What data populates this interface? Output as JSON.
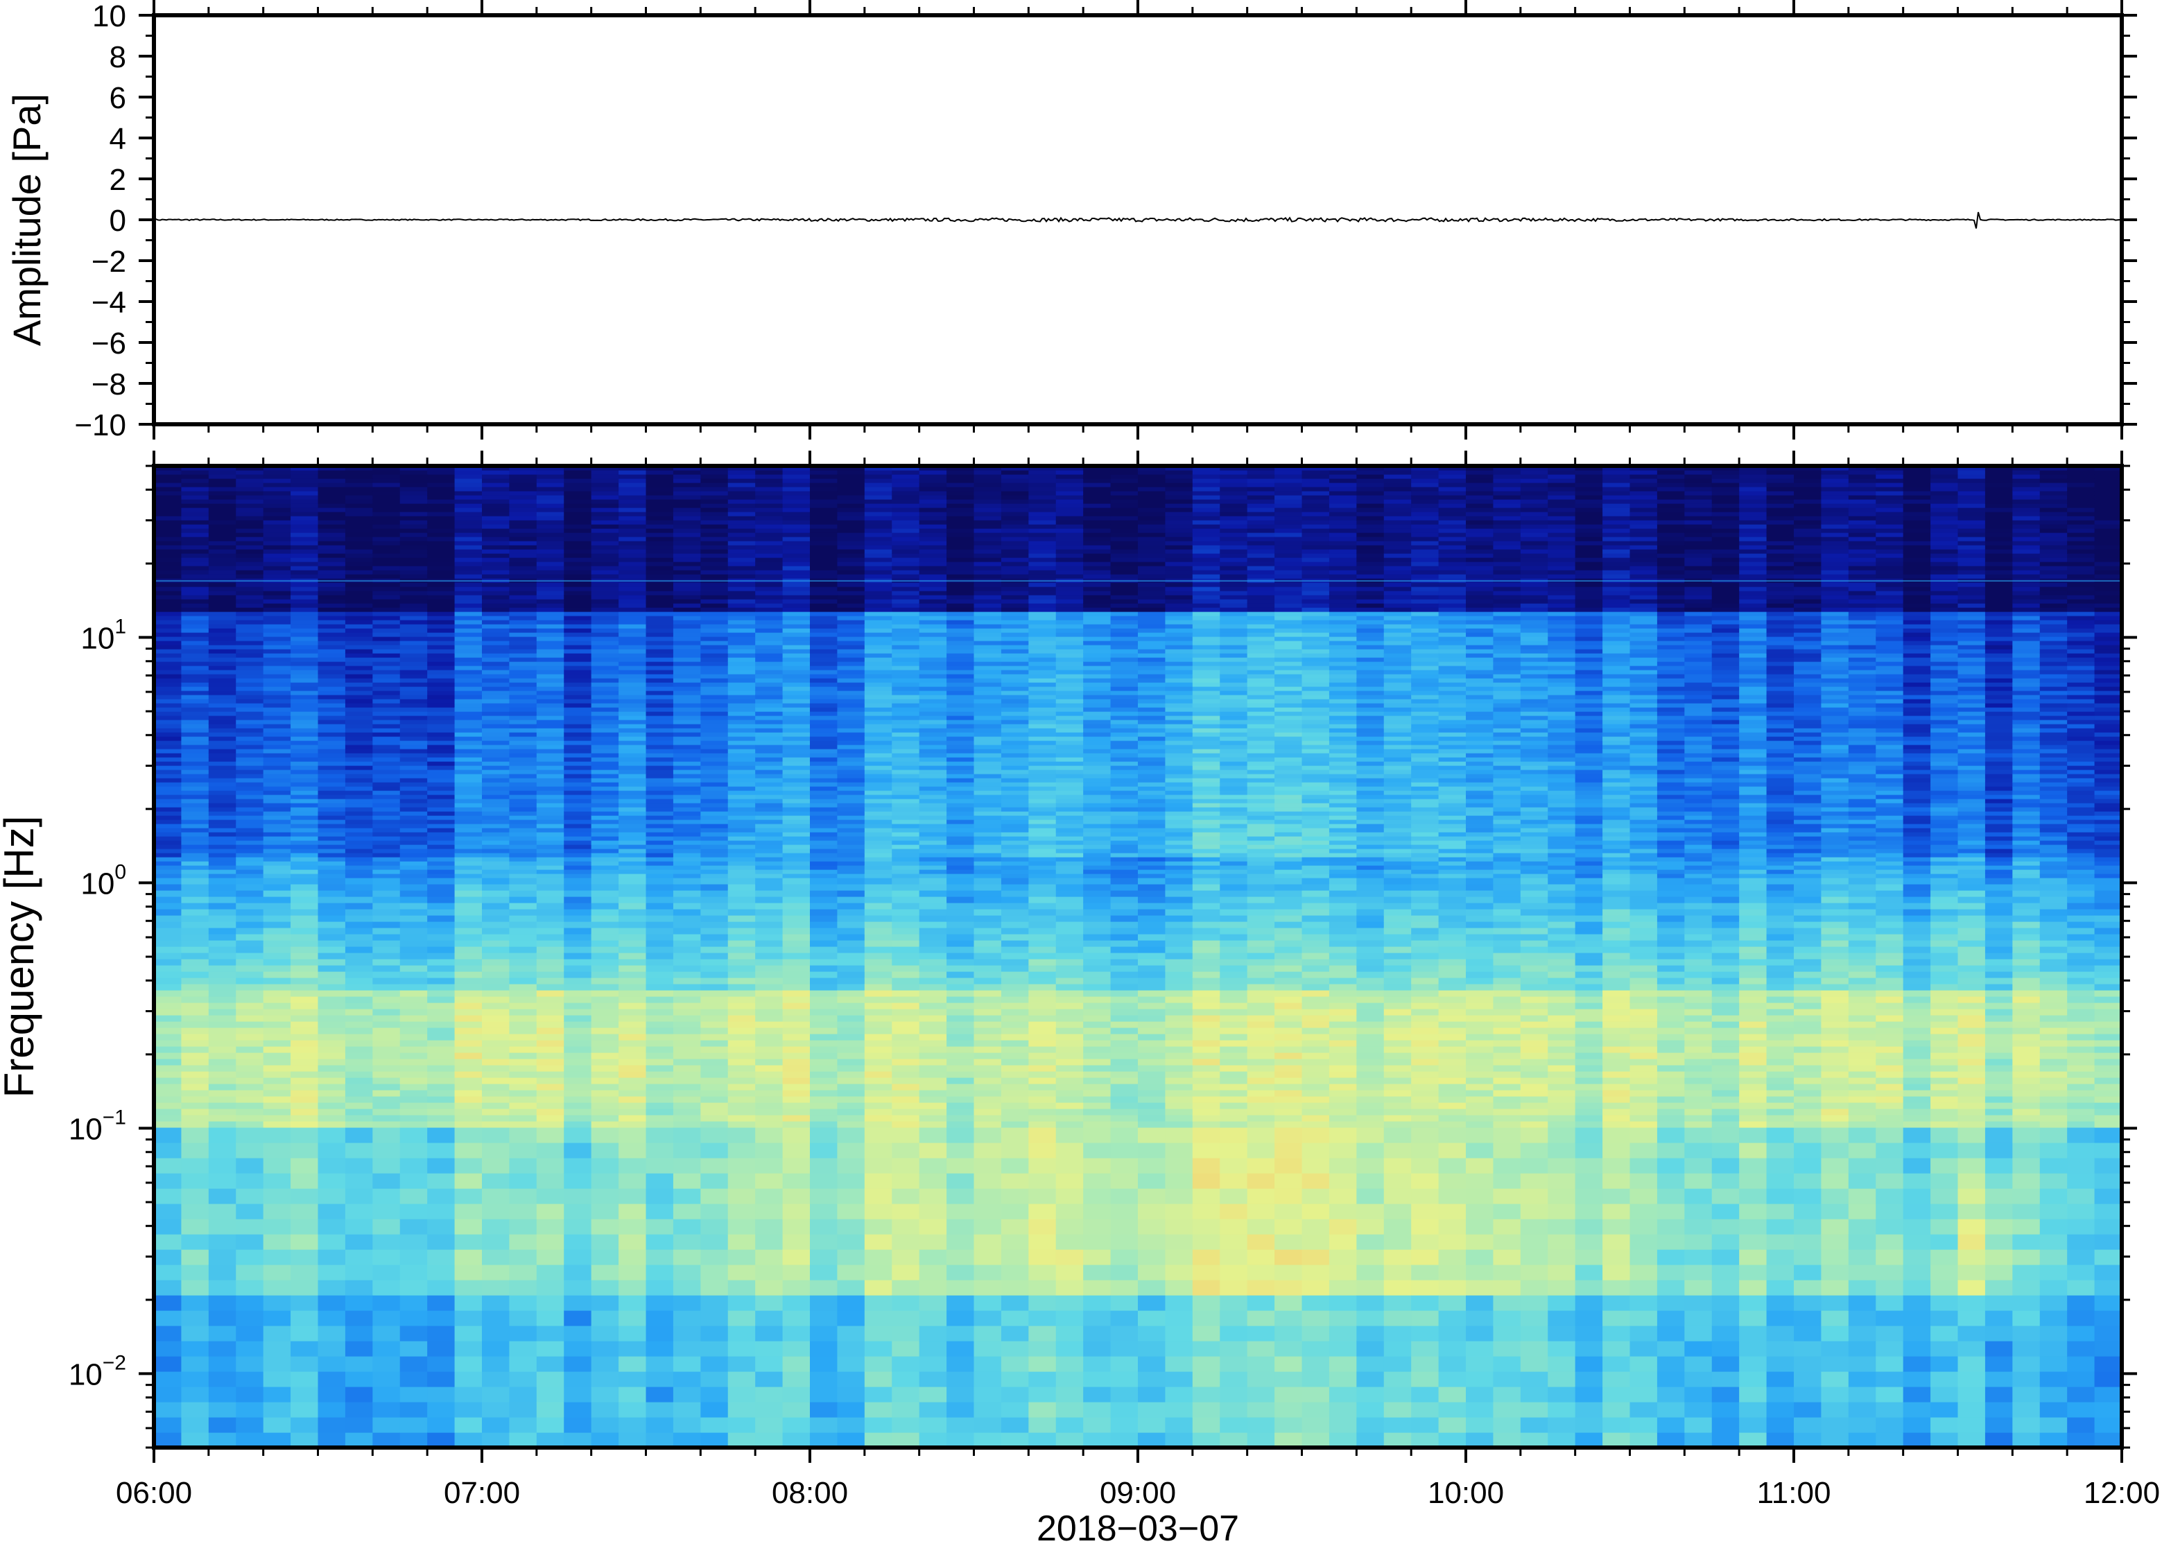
{
  "chart_data": [
    {
      "type": "line",
      "panel": "waveform",
      "ylabel": "Amplitude [Pa]",
      "ylim": [
        -10,
        10
      ],
      "yticks": [
        {
          "value": 10,
          "label": "10"
        },
        {
          "value": 8,
          "label": "8"
        },
        {
          "value": 6,
          "label": "6"
        },
        {
          "value": 4,
          "label": "4"
        },
        {
          "value": 2,
          "label": "2"
        },
        {
          "value": 0,
          "label": "0"
        },
        {
          "value": -2,
          "label": "−2"
        },
        {
          "value": -4,
          "label": "−4"
        },
        {
          "value": -6,
          "label": "−6"
        },
        {
          "value": -8,
          "label": "−8"
        },
        {
          "value": -10,
          "label": "−10"
        }
      ],
      "xlim": [
        "06:00",
        "12:00"
      ],
      "series": [
        {
          "x_hours": [
            6.0,
            7.0,
            8.0,
            9.0,
            10.0,
            11.0,
            11.56,
            12.0
          ],
          "values": [
            0,
            0,
            0,
            0,
            0,
            0,
            0.4,
            0
          ]
        }
      ],
      "grid": false
    },
    {
      "type": "heatmap",
      "panel": "spectrogram",
      "ylabel": "Frequency [Hz]",
      "yscale": "log",
      "ylim": [
        0.005,
        50
      ],
      "yticks": [
        {
          "value": 10,
          "base": "10",
          "exp": "1"
        },
        {
          "value": 1,
          "base": "10",
          "exp": "0"
        },
        {
          "value": 0.1,
          "base": "10",
          "exp": "−1"
        },
        {
          "value": 0.01,
          "base": "10",
          "exp": "−2"
        }
      ],
      "xlabel": "2018−03−07",
      "xlim": [
        "06:00",
        "12:00"
      ],
      "xticks": [
        "06:00",
        "07:00",
        "08:00",
        "09:00",
        "10:00",
        "11:00",
        "12:00"
      ],
      "colormap": [
        "#0a0a5e",
        "#0b1aa8",
        "#1262e8",
        "#2aa8f5",
        "#5fd8e6",
        "#a8eab8",
        "#e6f28c",
        "#f7c86a",
        "#f58a3c"
      ],
      "hotspot": {
        "time": "11:35",
        "frequency_hz": 0.03
      }
    }
  ]
}
